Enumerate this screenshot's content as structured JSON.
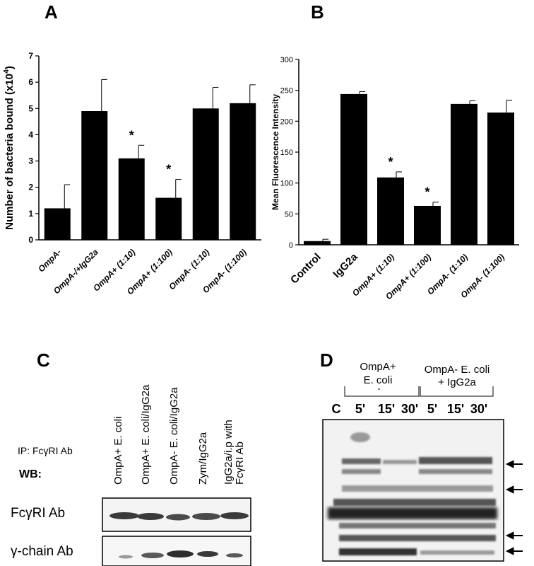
{
  "chart_data": [
    {
      "panel": "A",
      "type": "bar",
      "ylabel": "Number of bacteria bound (x10",
      "ylabel_sup": "4",
      "ylabel_end": ")",
      "ylim": [
        0,
        7
      ],
      "yticks": [
        "0",
        "1",
        "2",
        "3",
        "4",
        "5",
        "6",
        "7"
      ],
      "categories": [
        "OmpA-",
        "OmpA-/+IgG2a",
        "OmpA+ (1:10)",
        "OmpA+ (1:100)",
        "OmpA- (1:10)",
        "OmpA- (1:100)"
      ],
      "values": [
        1.2,
        4.9,
        3.1,
        1.6,
        5.0,
        5.2
      ],
      "errors": [
        0.9,
        1.2,
        0.5,
        0.7,
        0.8,
        0.7
      ],
      "significance": [
        "",
        "",
        "*",
        "*",
        "",
        ""
      ]
    },
    {
      "panel": "B",
      "type": "bar",
      "ylabel": "Mean Fluorescence Intensity",
      "ylim": [
        0,
        300
      ],
      "yticks": [
        "0",
        "50",
        "100",
        "150",
        "200",
        "250",
        "300"
      ],
      "categories": [
        "Control",
        "IgG2a",
        "OmpA+ (1:10)",
        "OmpA+ (1:100)",
        "OmpA- (1:10)",
        "OmpA- (1:100)"
      ],
      "values": [
        6,
        244,
        109,
        63,
        228,
        214
      ],
      "errors": [
        3,
        4,
        9,
        6,
        5,
        20
      ],
      "significance": [
        "",
        "",
        "*",
        "*",
        "",
        ""
      ]
    }
  ],
  "panel_c": {
    "letter": "C",
    "lanes": [
      "OmpA+ E. coli",
      "OmpA+ E. coli/IgG2a",
      "OmpA- E. coli/IgG2a",
      "Zym/IgG2a",
      "IgG2a/i.p with FcγRI Ab"
    ],
    "ip_label": "IP: FcγRI Ab",
    "wb_label": "WB:",
    "row1_label": "FcγRI Ab",
    "row2_label": "γ-chain Ab"
  },
  "panel_d": {
    "letter": "D",
    "group1": [
      "OmpA+",
      "E. coli"
    ],
    "group2": [
      "OmpA- E. coli",
      "+ IgG2a"
    ],
    "lanes": [
      "C",
      "5'",
      "15'",
      "30'",
      "5'",
      "15'",
      "30'"
    ]
  }
}
